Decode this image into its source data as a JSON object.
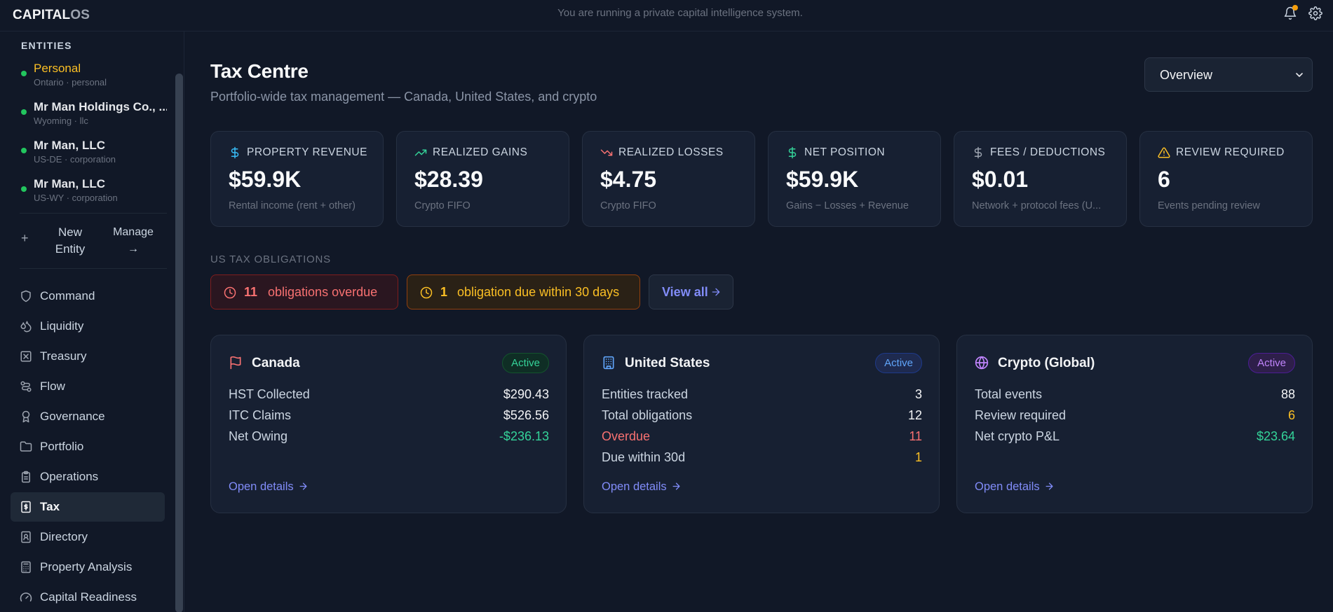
{
  "app": {
    "logo_main": "CAPITAL",
    "logo_accent": "OS",
    "top_message": "You are running a private capital intelligence system."
  },
  "sidebar": {
    "entities_heading": "ENTITIES",
    "entities": [
      {
        "name": "Personal",
        "sub": "Ontario · personal"
      },
      {
        "name": "Mr Man Holdings Co., ...",
        "sub": "Wyoming · llc"
      },
      {
        "name": "Mr Man, LLC",
        "sub": "US-DE · corporation"
      },
      {
        "name": "Mr Man, LLC",
        "sub": "US-WY · corporation"
      }
    ],
    "new_entity": "New Entity",
    "manage": "Manage →",
    "nav": [
      {
        "label": "Command",
        "icon": "shield-icon"
      },
      {
        "label": "Liquidity",
        "icon": "droplet-icon"
      },
      {
        "label": "Treasury",
        "icon": "vault-icon"
      },
      {
        "label": "Flow",
        "icon": "flow-icon"
      },
      {
        "label": "Governance",
        "icon": "award-icon"
      },
      {
        "label": "Portfolio",
        "icon": "folder-icon"
      },
      {
        "label": "Operations",
        "icon": "clipboard-icon"
      },
      {
        "label": "Tax",
        "icon": "receipt-icon"
      },
      {
        "label": "Directory",
        "icon": "contact-book-icon"
      },
      {
        "label": "Property Analysis",
        "icon": "calculator-icon"
      },
      {
        "label": "Capital Readiness",
        "icon": "gauge-icon"
      }
    ],
    "active_nav": "Tax"
  },
  "header": {
    "title": "Tax Centre",
    "subtitle": "Portfolio-wide tax management — Canada, United States, and crypto",
    "view_select": "Overview"
  },
  "stats": [
    {
      "label": "PROPERTY REVENUE",
      "value": "$59.9K",
      "sub": "Rental income (rent + other)",
      "icon": "dollar-icon",
      "color": "#38bdf8"
    },
    {
      "label": "REALIZED GAINS",
      "value": "$28.39",
      "sub": "Crypto FIFO",
      "icon": "trending-up-icon",
      "color": "#34d399"
    },
    {
      "label": "REALIZED LOSSES",
      "value": "$4.75",
      "sub": "Crypto FIFO",
      "icon": "trending-down-icon",
      "color": "#f87171"
    },
    {
      "label": "NET POSITION",
      "value": "$59.9K",
      "sub": "Gains − Losses + Revenue",
      "icon": "dollar-icon",
      "color": "#34d399"
    },
    {
      "label": "FEES / DEDUCTIONS",
      "value": "$0.01",
      "sub": "Network + protocol fees (U...",
      "icon": "dollar-icon",
      "color": "#9ca3af"
    },
    {
      "label": "REVIEW REQUIRED",
      "value": "6",
      "sub": "Events pending review",
      "icon": "warning-icon",
      "color": "#fbbf24"
    }
  ],
  "obligations": {
    "heading": "US TAX OBLIGATIONS",
    "overdue_count": "11",
    "overdue_text": "obligations overdue",
    "due_count": "1",
    "due_text": "obligation due within 30 days",
    "view_all": "View all"
  },
  "cards": {
    "canada": {
      "title": "Canada",
      "badge": "Active",
      "rows": [
        {
          "label": "HST Collected",
          "value": "$290.43"
        },
        {
          "label": "ITC Claims",
          "value": "$526.56"
        },
        {
          "label": "Net Owing",
          "value": "-$236.13"
        }
      ],
      "link": "Open details"
    },
    "us": {
      "title": "United States",
      "badge": "Active",
      "rows": [
        {
          "label": "Entities tracked",
          "value": "3"
        },
        {
          "label": "Total obligations",
          "value": "12"
        },
        {
          "label": "Overdue",
          "value": "11"
        },
        {
          "label": "Due within 30d",
          "value": "1"
        }
      ],
      "link": "Open details"
    },
    "crypto": {
      "title": "Crypto (Global)",
      "badge": "Active",
      "rows": [
        {
          "label": "Total events",
          "value": "88"
        },
        {
          "label": "Review required",
          "value": "6"
        },
        {
          "label": "Net crypto P&L",
          "value": "$23.64"
        }
      ],
      "link": "Open details"
    }
  }
}
